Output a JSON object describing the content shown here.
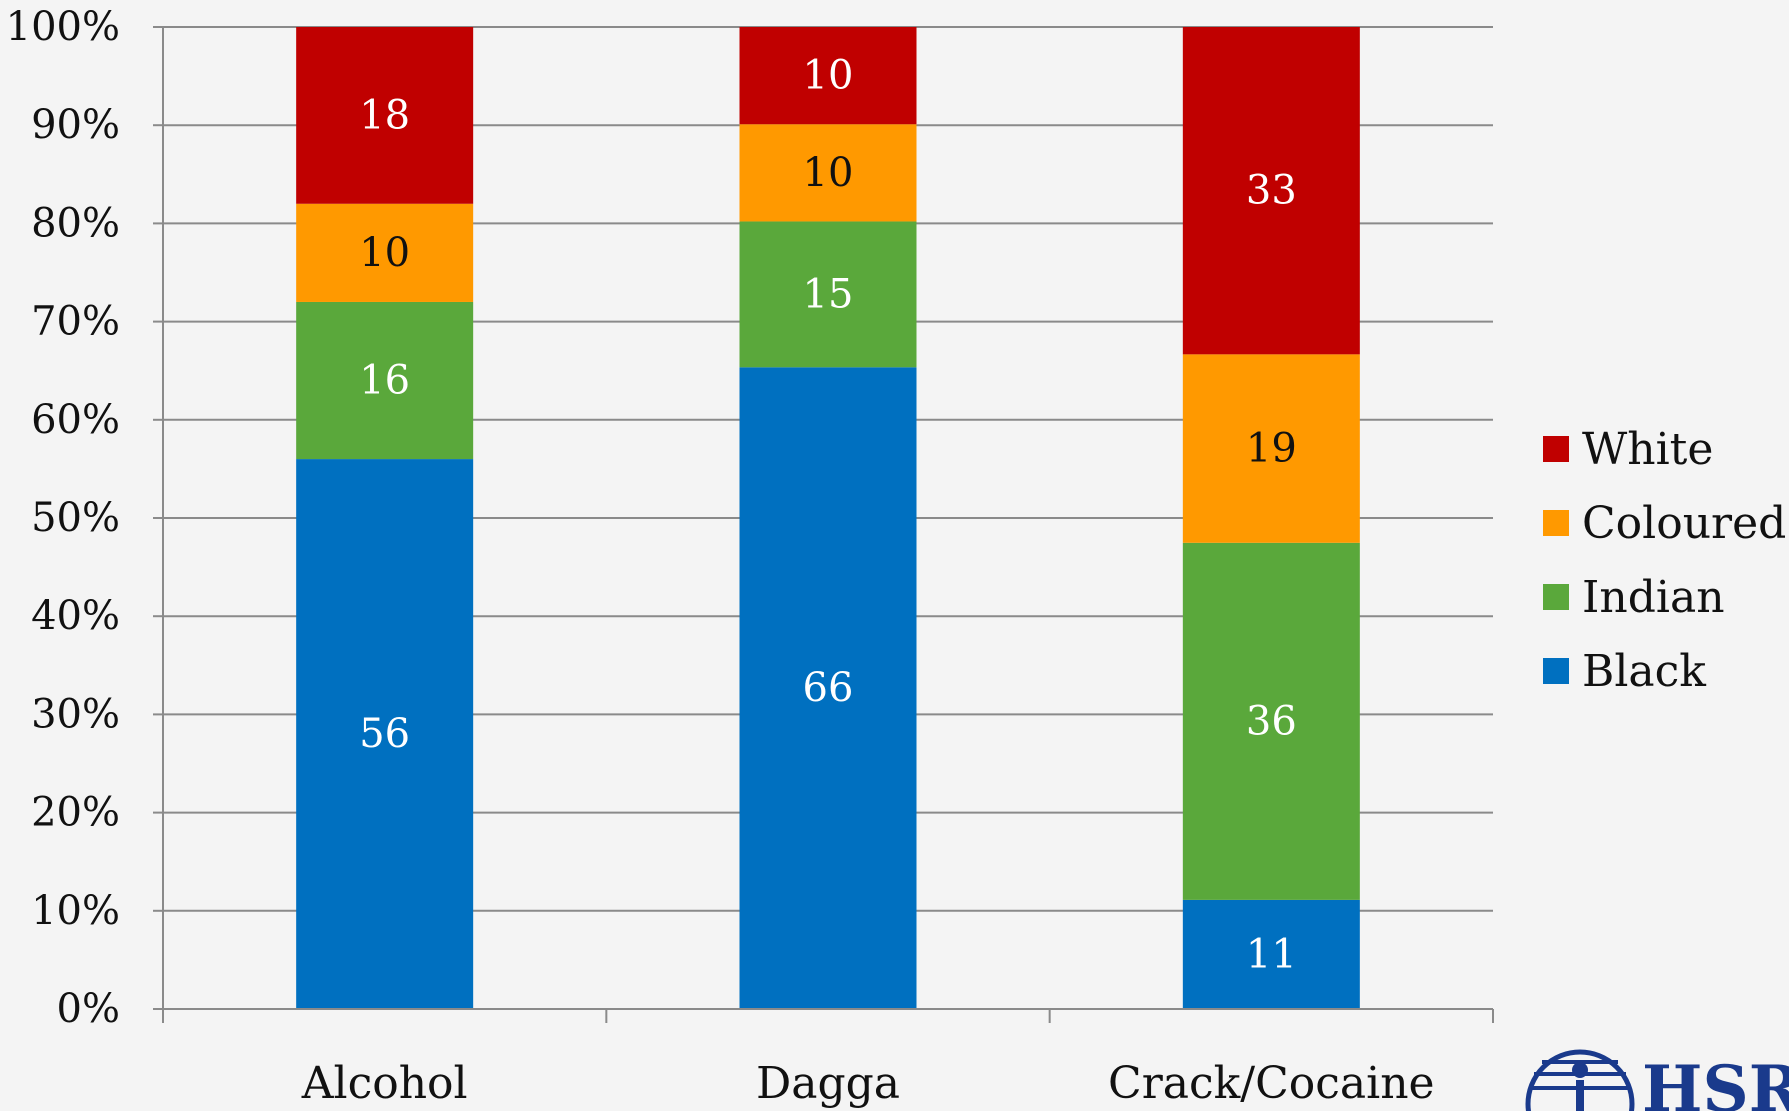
{
  "chart_data": {
    "type": "bar",
    "stacked": true,
    "normalized": true,
    "categories": [
      "Alcohol",
      "Dagga",
      "Crack/Cocaine"
    ],
    "series": [
      {
        "name": "Black",
        "color": "#0070c0",
        "label_color": "#ffffff",
        "values": [
          56,
          66,
          11
        ]
      },
      {
        "name": "Indian",
        "color": "#5aa83b",
        "label_color": "#ffffff",
        "values": [
          16,
          15,
          36
        ]
      },
      {
        "name": "Coloured",
        "color": "#ff9900",
        "label_color": "#111111",
        "values": [
          10,
          10,
          19
        ]
      },
      {
        "name": "White",
        "color": "#c00000",
        "label_color": "#ffffff",
        "values": [
          18,
          10,
          33
        ]
      }
    ],
    "yticks": [
      "0%",
      "10%",
      "20%",
      "30%",
      "40%",
      "50%",
      "60%",
      "70%",
      "80%",
      "90%",
      "100%"
    ],
    "ylim": [
      0,
      100
    ],
    "grid": true,
    "legend_position": "right",
    "title": "",
    "xlabel": "",
    "ylabel": ""
  },
  "logo": {
    "text": "HSRC",
    "icon": "hsrc-globe-logo"
  }
}
